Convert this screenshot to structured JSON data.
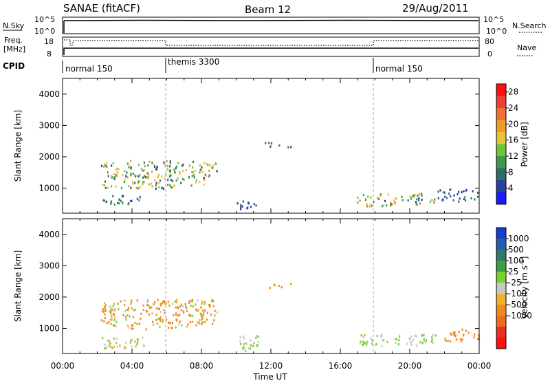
{
  "header": {
    "title": "SANAE (fitACF)",
    "beam": "Beam 12",
    "date": "29/Aug/2011"
  },
  "status_panels": {
    "nsky_label": "N.Sky",
    "nsearch_label": "N.Search",
    "nsky_ticks": [
      "10^5",
      "10^0"
    ],
    "nsearch_ticks": [
      "10^5",
      "10^0"
    ],
    "freq_label_1": "Freq.",
    "freq_label_2": "[MHz]",
    "freq_ticks": [
      "18",
      "8"
    ],
    "nave_label": "Nave",
    "nave_ticks": [
      "80",
      "0"
    ],
    "cpid_label": "CPID",
    "cpid_segments": [
      {
        "name": "normal 150",
        "start_h": 0,
        "end_h": 6
      },
      {
        "name": "themis 3300",
        "start_h": 6,
        "end_h": 18
      },
      {
        "name": "normal 150",
        "start_h": 18,
        "end_h": 24
      }
    ]
  },
  "colors": {
    "power_scale": [
      "#1a1aff",
      "#2a3fa0",
      "#2d6e6a",
      "#3f9a4e",
      "#6fc23c",
      "#e8c23a",
      "#f09a2a",
      "#f07030",
      "#ee4030",
      "#ff1010"
    ],
    "velocity_scale": [
      "#1a3cc8",
      "#2a5ab4",
      "#2f7a6a",
      "#3aa040",
      "#7ad030",
      "#c8c8c8",
      "#f0b030",
      "#f08a20",
      "#f06a20",
      "#e83020",
      "#ff1010"
    ]
  },
  "chart_data": [
    {
      "type": "heatmap",
      "name": "power",
      "ylabel": "Slant Range [km]",
      "xlabel": "",
      "ylim": [
        200,
        4500
      ],
      "xlim_hours": [
        0,
        24
      ],
      "y_ticks": [
        "4000",
        "3000",
        "2000",
        "1000"
      ],
      "colorbar_label": "Power [dB]",
      "colorbar_ticks": [
        "28",
        "24",
        "20",
        "16",
        "12",
        "8",
        "4"
      ],
      "colorbar_range": [
        0,
        30
      ],
      "regions": [
        {
          "x": [
            2.2,
            8.9
          ],
          "y": [
            1000,
            1900
          ],
          "v_range": [
            5,
            20
          ]
        },
        {
          "x": [
            2.2,
            4.5
          ],
          "y": [
            500,
            800
          ],
          "v_range": [
            4,
            10
          ]
        },
        {
          "x": [
            10.0,
            11.2
          ],
          "y": [
            300,
            700
          ],
          "v_range": [
            4,
            8
          ]
        },
        {
          "x": [
            11.6,
            13.2
          ],
          "y": [
            2300,
            2500
          ],
          "v_range": [
            4,
            9
          ]
        },
        {
          "x": [
            16.9,
            21.6
          ],
          "y": [
            450,
            850
          ],
          "v_range": [
            5,
            22
          ]
        },
        {
          "x": [
            21.6,
            24.0
          ],
          "y": [
            600,
            1000
          ],
          "v_range": [
            4,
            10
          ]
        }
      ]
    },
    {
      "type": "heatmap",
      "name": "velocity",
      "ylabel": "Slant Range [km]",
      "xlabel": "Time UT",
      "ylim": [
        200,
        4500
      ],
      "xlim_hours": [
        0,
        24
      ],
      "x_ticks": [
        "00:00",
        "04:00",
        "08:00",
        "12:00",
        "16:00",
        "20:00",
        "00:00"
      ],
      "y_ticks": [
        "4000",
        "3000",
        "2000",
        "1000"
      ],
      "colorbar_label": "Velocity [m s^-1]",
      "colorbar_ticks": [
        "1000",
        "500",
        "100",
        "25",
        "-25",
        "-100",
        "-500",
        "-1000"
      ],
      "regions": [
        {
          "x": [
            2.2,
            8.9
          ],
          "y": [
            1000,
            1950
          ],
          "v_range": [
            -500,
            100
          ]
        },
        {
          "x": [
            2.2,
            4.8
          ],
          "y": [
            400,
            800
          ],
          "v_range": [
            -100,
            100
          ]
        },
        {
          "x": [
            10.0,
            11.3
          ],
          "y": [
            300,
            800
          ],
          "v_range": [
            -25,
            100
          ]
        },
        {
          "x": [
            11.6,
            13.2
          ],
          "y": [
            2300,
            2500
          ],
          "v_range": [
            -500,
            -100
          ]
        },
        {
          "x": [
            16.9,
            21.6
          ],
          "y": [
            450,
            850
          ],
          "v_range": [
            -25,
            100
          ]
        },
        {
          "x": [
            21.6,
            24.0
          ],
          "y": [
            600,
            1000
          ],
          "v_range": [
            -500,
            -100
          ]
        }
      ]
    }
  ]
}
